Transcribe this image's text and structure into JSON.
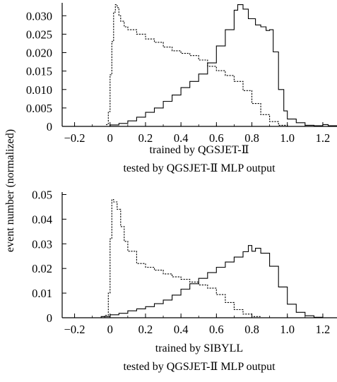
{
  "y_axis_label": "event number (normalized)",
  "chart_data": [
    {
      "type": "histogram-step",
      "caption_line1": "trained by QGSJET-Ⅱ",
      "caption_line2": "tested by QGSJET-Ⅱ  MLP output",
      "xlim": [
        -0.27,
        1.28
      ],
      "ylim": [
        0,
        0.0335
      ],
      "x_ticks": [
        -0.2,
        0,
        0.2,
        0.4,
        0.6,
        0.8,
        1.0,
        1.2
      ],
      "x_tick_labels": [
        "−0.2",
        "0",
        "0.2",
        "0.4",
        "0.6",
        "0.8",
        "1.0",
        "1.2"
      ],
      "y_ticks": [
        0,
        0.005,
        0.01,
        0.015,
        0.02,
        0.025,
        0.03
      ],
      "y_tick_labels": [
        "0",
        "0.005",
        "0.010",
        "0.015",
        "0.020",
        "0.025",
        "0.030"
      ],
      "series": [
        {
          "style": "dashed",
          "points": [
            [
              -0.27,
              0
            ],
            [
              -0.03,
              0
            ],
            [
              -0.02,
              0.0005
            ],
            [
              -0.01,
              0.004
            ],
            [
              0.0,
              0.014
            ],
            [
              0.01,
              0.023
            ],
            [
              0.02,
              0.031
            ],
            [
              0.03,
              0.033
            ],
            [
              0.04,
              0.0322
            ],
            [
              0.05,
              0.03
            ],
            [
              0.06,
              0.0285
            ],
            [
              0.08,
              0.027
            ],
            [
              0.1,
              0.0262
            ],
            [
              0.15,
              0.025
            ],
            [
              0.2,
              0.0237
            ],
            [
              0.25,
              0.0228
            ],
            [
              0.3,
              0.0215
            ],
            [
              0.35,
              0.0205
            ],
            [
              0.4,
              0.0198
            ],
            [
              0.45,
              0.0192
            ],
            [
              0.5,
              0.018
            ],
            [
              0.55,
              0.0163
            ],
            [
              0.6,
              0.0151
            ],
            [
              0.65,
              0.0138
            ],
            [
              0.7,
              0.0122
            ],
            [
              0.75,
              0.0097
            ],
            [
              0.8,
              0.0062
            ],
            [
              0.85,
              0.0032
            ],
            [
              0.9,
              0.0013
            ],
            [
              0.95,
              0.0003
            ],
            [
              1.0,
              0
            ],
            [
              1.28,
              0
            ]
          ]
        },
        {
          "style": "solid",
          "points": [
            [
              -0.27,
              0
            ],
            [
              -0.05,
              0
            ],
            [
              0.0,
              0.0004
            ],
            [
              0.05,
              0.0008
            ],
            [
              0.1,
              0.0015
            ],
            [
              0.15,
              0.0025
            ],
            [
              0.2,
              0.0038
            ],
            [
              0.25,
              0.005
            ],
            [
              0.3,
              0.0068
            ],
            [
              0.35,
              0.0085
            ],
            [
              0.4,
              0.0105
            ],
            [
              0.45,
              0.0122
            ],
            [
              0.5,
              0.0142
            ],
            [
              0.55,
              0.0172
            ],
            [
              0.6,
              0.0218
            ],
            [
              0.65,
              0.0262
            ],
            [
              0.7,
              0.0315
            ],
            [
              0.72,
              0.033
            ],
            [
              0.75,
              0.0318
            ],
            [
              0.78,
              0.0292
            ],
            [
              0.82,
              0.0275
            ],
            [
              0.85,
              0.027
            ],
            [
              0.88,
              0.026
            ],
            [
              0.9,
              0.0262
            ],
            [
              0.92,
              0.0202
            ],
            [
              0.95,
              0.01
            ],
            [
              0.98,
              0.0042
            ],
            [
              1.0,
              0.002
            ],
            [
              1.05,
              0.001
            ],
            [
              1.1,
              0.0003
            ],
            [
              1.15,
              0.0002
            ],
            [
              1.2,
              0.0005
            ],
            [
              1.23,
              0.0002
            ],
            [
              1.28,
              0
            ]
          ]
        }
      ]
    },
    {
      "type": "histogram-step",
      "caption_line1": "trained by SIBYLL",
      "caption_line2": "tested by QGSJET-Ⅱ  MLP output",
      "xlim": [
        -0.27,
        1.28
      ],
      "ylim": [
        0,
        0.051
      ],
      "x_ticks": [
        -0.2,
        0,
        0.2,
        0.4,
        0.6,
        0.8,
        1.0,
        1.2
      ],
      "x_tick_labels": [
        "−0.2",
        "0",
        "0.2",
        "0.4",
        "0.6",
        "0.8",
        "1.0",
        "1.2"
      ],
      "y_ticks": [
        0,
        0.01,
        0.02,
        0.03,
        0.04,
        0.05
      ],
      "y_tick_labels": [
        "0",
        "0.01",
        "0.02",
        "0.03",
        "0.04",
        "0.05"
      ],
      "series": [
        {
          "style": "dashed",
          "points": [
            [
              -0.27,
              0
            ],
            [
              -0.05,
              0
            ],
            [
              -0.03,
              0.001
            ],
            [
              -0.01,
              0.01
            ],
            [
              0.0,
              0.032
            ],
            [
              0.01,
              0.048
            ],
            [
              0.02,
              0.047
            ],
            [
              0.04,
              0.044
            ],
            [
              0.06,
              0.037
            ],
            [
              0.08,
              0.031
            ],
            [
              0.1,
              0.027
            ],
            [
              0.15,
              0.022
            ],
            [
              0.2,
              0.0205
            ],
            [
              0.25,
              0.0193
            ],
            [
              0.3,
              0.0178
            ],
            [
              0.35,
              0.0166
            ],
            [
              0.4,
              0.0156
            ],
            [
              0.45,
              0.0145
            ],
            [
              0.5,
              0.0133
            ],
            [
              0.55,
              0.012
            ],
            [
              0.6,
              0.0094
            ],
            [
              0.65,
              0.0062
            ],
            [
              0.7,
              0.0033
            ],
            [
              0.75,
              0.0015
            ],
            [
              0.8,
              0.0005
            ],
            [
              0.85,
              0
            ],
            [
              1.28,
              0
            ]
          ]
        },
        {
          "style": "solid",
          "points": [
            [
              -0.27,
              0
            ],
            [
              -0.1,
              0
            ],
            [
              -0.05,
              0.0005
            ],
            [
              0.0,
              0.0012
            ],
            [
              0.05,
              0.0018
            ],
            [
              0.1,
              0.0028
            ],
            [
              0.15,
              0.0036
            ],
            [
              0.2,
              0.0045
            ],
            [
              0.25,
              0.0057
            ],
            [
              0.3,
              0.0072
            ],
            [
              0.35,
              0.0092
            ],
            [
              0.4,
              0.0116
            ],
            [
              0.45,
              0.0138
            ],
            [
              0.5,
              0.016
            ],
            [
              0.55,
              0.0183
            ],
            [
              0.6,
              0.0205
            ],
            [
              0.65,
              0.0226
            ],
            [
              0.7,
              0.0246
            ],
            [
              0.75,
              0.0268
            ],
            [
              0.78,
              0.0293
            ],
            [
              0.8,
              0.027
            ],
            [
              0.82,
              0.0282
            ],
            [
              0.85,
              0.0262
            ],
            [
              0.9,
              0.0209
            ],
            [
              0.95,
              0.0125
            ],
            [
              1.0,
              0.0055
            ],
            [
              1.05,
              0.0022
            ],
            [
              1.1,
              0.0008
            ],
            [
              1.15,
              0.0002
            ],
            [
              1.2,
              0
            ],
            [
              1.28,
              0
            ]
          ]
        }
      ]
    }
  ]
}
